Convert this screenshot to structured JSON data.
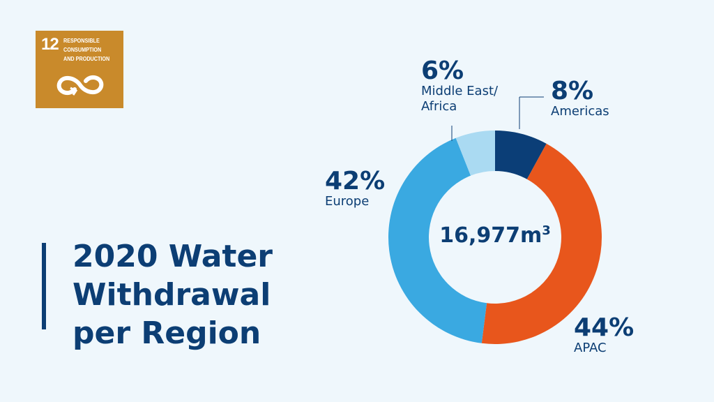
{
  "logo": {
    "number": "12",
    "text": "RESPONSIBLE CONSUMPTION AND PRODUCTION",
    "color": "#c98a2b"
  },
  "title_lines": [
    "2020 Water",
    "Withdrawal",
    "per Region"
  ],
  "chart_data": {
    "type": "pie",
    "title": "2020 Water Withdrawal per Region",
    "center_label": {
      "value": "16,977m",
      "unit_sup": "3"
    },
    "slices": [
      {
        "name": "Americas",
        "value": 8,
        "label": "8%",
        "color": "#0b3e77"
      },
      {
        "name": "APAC",
        "value": 44,
        "label": "44%",
        "color": "#e8561c"
      },
      {
        "name": "Europe",
        "value": 42,
        "label": "42%",
        "color": "#3aa9e1"
      },
      {
        "name": "Middle East/ Africa",
        "value": 6,
        "label": "6%",
        "color": "#aadaf2"
      }
    ]
  }
}
